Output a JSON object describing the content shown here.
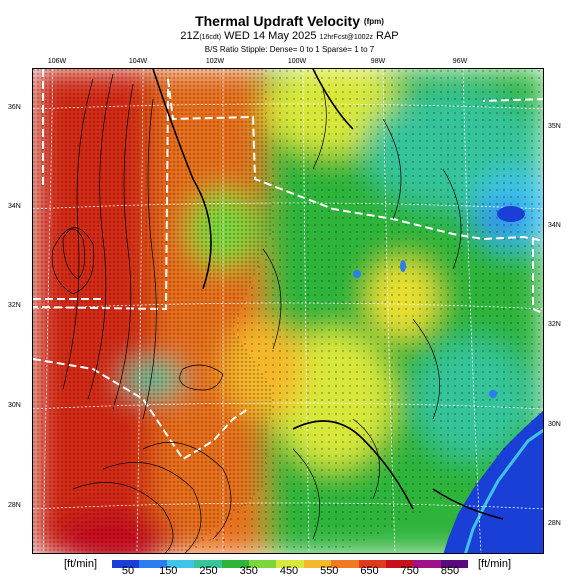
{
  "header": {
    "title": "Thermal Updraft Velocity",
    "title_unit": "(fpm)",
    "subtitle_main": "21Z",
    "subtitle_small1": "(16cdt)",
    "subtitle_mid": " WED 14 May 2025 ",
    "subtitle_small2": "12hrFcst@1002z",
    "subtitle_end": " RAP",
    "note": "B/S Ratio Stipple: Dense= 0 to 1 Sparse= 1 to 7"
  },
  "map": {
    "lon_labels": [
      "106W",
      "104W",
      "102W",
      "100W",
      "98W",
      "96W"
    ],
    "lat_labels_left": [
      "36N",
      "34N",
      "32N",
      "30N",
      "28N"
    ],
    "lat_labels_right": [
      "35N",
      "34N",
      "32N",
      "30N",
      "28N"
    ]
  },
  "colorbar": {
    "unit_left": "[ft/min]",
    "unit_right": "[ft/min]",
    "ticks": [
      "50",
      "150",
      "250",
      "350",
      "450",
      "550",
      "650",
      "750",
      "850"
    ],
    "colors": [
      "#1a3fd6",
      "#2d7cf0",
      "#3ec4e8",
      "#36c49a",
      "#2fb43a",
      "#7ad63a",
      "#d8e83a",
      "#f5b82a",
      "#f07a22",
      "#e03a1c",
      "#c8101a",
      "#a0108a",
      "#5a0a7a"
    ]
  }
}
